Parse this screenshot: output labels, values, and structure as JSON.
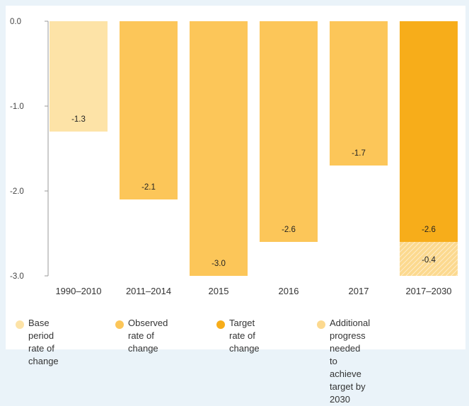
{
  "chart_data": {
    "type": "bar",
    "categories": [
      "1990–2010",
      "2011–2014",
      "2015",
      "2016",
      "2017",
      "2017–2030"
    ],
    "series": [
      {
        "values": [
          -1.3,
          -2.1,
          -3.0,
          -2.6,
          -1.7,
          -2.6
        ]
      },
      {
        "values": [
          0,
          0,
          0,
          0,
          0,
          -0.4
        ]
      }
    ],
    "data_labels": [
      "-1.3",
      "-2.1",
      "-3.0",
      "-2.6",
      "-1.7",
      "-2.6"
    ],
    "extra_label": "-0.4",
    "bar_colors": [
      "#fde3a7",
      "#fcc659",
      "#fcc659",
      "#fcc659",
      "#fcc659",
      "#f7ad1a"
    ],
    "extra_color": "#fcd98f",
    "ylim": [
      -3.0,
      0.0
    ],
    "yticks": [
      "0.0",
      "-1.0",
      "-2.0",
      "-3.0"
    ],
    "ytick_values": [
      0.0,
      -1.0,
      -2.0,
      -3.0
    ],
    "grid": false
  },
  "legend": [
    {
      "label": "Base period\nrate of change",
      "color": "#fde3a7"
    },
    {
      "label": "Observed\nrate of change",
      "color": "#fcc659"
    },
    {
      "label": "Target\nrate of change",
      "color": "#f7ad1a"
    },
    {
      "label": "Additional progress needed\nto achieve target by 2030",
      "color": "#fcd98f"
    }
  ]
}
